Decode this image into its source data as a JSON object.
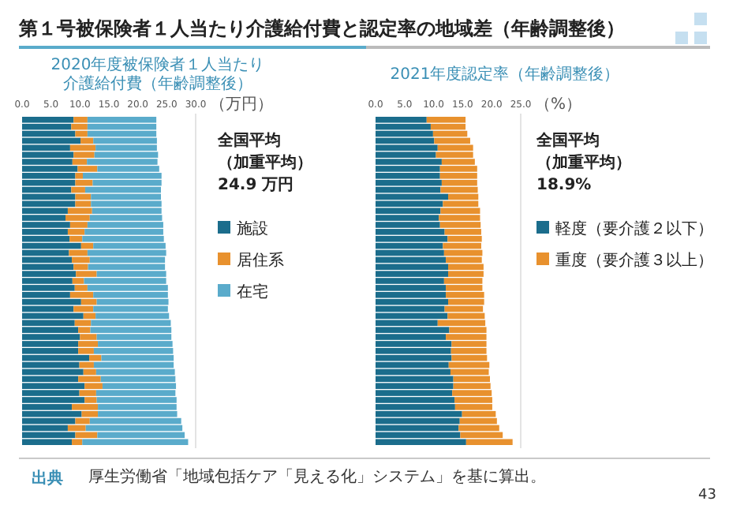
{
  "chart_data": [
    {
      "type": "other",
      "title": "第１号被保険者１人当たり介護給付費と認定率の地域差（年齢調整後）",
      "annotations": [
        "出典",
        "厚生労働省「地域包括ケア「見える化」システム」を基に算出。",
        "43"
      ]
    },
    {
      "type": "bar",
      "orientation": "horizontal",
      "stacked": true,
      "title": "2020年度被保険者１人当たり介護給付費（年齢調整後）",
      "xlabel": "（万円）",
      "legend": "right",
      "categories": [
        null,
        null,
        null,
        null,
        null,
        null,
        null,
        null,
        null,
        null,
        null,
        null,
        null,
        null,
        null,
        null,
        null,
        null,
        null,
        null,
        null,
        null,
        null,
        null,
        null,
        null,
        null,
        null,
        null,
        null,
        null,
        null,
        null,
        null,
        null,
        null,
        null,
        null,
        null,
        null,
        null,
        null,
        null,
        null,
        null,
        null,
        null
      ],
      "xlim": [
        0,
        30
      ],
      "xticks": [
        {
          "value": 0,
          "label": "0.0"
        },
        {
          "value": 5,
          "label": "5.0"
        },
        {
          "value": 10,
          "label": "10.0"
        },
        {
          "value": 15,
          "label": "15.0"
        },
        {
          "value": 20,
          "label": "20.0"
        },
        {
          "value": 25,
          "label": "25.0"
        },
        {
          "value": 30,
          "label": "30.0"
        }
      ],
      "annotations": [
        "全国平均",
        "（加重平均）",
        "24.9 万円"
      ],
      "series": [
        {
          "name": "施設",
          "color": "#1b6d8c",
          "values": [
            8.9,
            8.5,
            9.2,
            10.1,
            8.3,
            8.9,
            8.7,
            9.6,
            9.2,
            9.2,
            8.5,
            9.2,
            9.2,
            7.9,
            7.5,
            8.3,
            7.9,
            8.2,
            10.2,
            8.1,
            8.6,
            8.9,
            9.3,
            8.7,
            9.1,
            8.3,
            10.2,
            8.9,
            10.6,
            9.1,
            9.7,
            10.0,
            9.7,
            9.7,
            11.6,
            9.9,
            10.6,
            9.7,
            10.8,
            9.9,
            10.8,
            8.6,
            10.3,
            9.2,
            7.9,
            9.2,
            8.6
          ]
        },
        {
          "name": "居住系",
          "color": "#e8912e",
          "values": [
            2.4,
            2.8,
            2.1,
            2.2,
            4.4,
            3.6,
            2.5,
            3.4,
            1.3,
            3.0,
            2.4,
            2.7,
            2.7,
            4.2,
            4.2,
            3.0,
            2.9,
            2.2,
            2.1,
            3.2,
            3.1,
            2.5,
            3.6,
            2.0,
            2.2,
            4.0,
            2.7,
            3.4,
            2.1,
            2.8,
            2.1,
            2.9,
            3.4,
            2.7,
            2.1,
            2.5,
            2.2,
            3.9,
            3.1,
            2.9,
            2.1,
            4.5,
            2.8,
            2.5,
            3.1,
            3.8,
            1.8
          ]
        },
        {
          "name": "在宅",
          "color": "#5aabcb",
          "values": [
            11.9,
            11.9,
            11.9,
            11.0,
            10.6,
            11.0,
            12.2,
            10.7,
            13.6,
            11.9,
            13.1,
            12.1,
            12.2,
            12.0,
            12.5,
            13.1,
            13.6,
            14.1,
            12.5,
            13.6,
            13.0,
            13.3,
            12.0,
            14.2,
            13.9,
            12.9,
            12.4,
            12.9,
            12.7,
            13.8,
            14.0,
            12.9,
            12.9,
            13.7,
            12.5,
            13.8,
            13.6,
            12.9,
            12.7,
            13.7,
            13.8,
            13.6,
            13.7,
            15.8,
            16.7,
            15.1,
            18.3
          ]
        }
      ]
    },
    {
      "type": "bar",
      "orientation": "horizontal",
      "stacked": true,
      "title": "2021年度認定率（年齢調整後）",
      "xlabel": "（%）",
      "legend": "right",
      "categories": [
        null,
        null,
        null,
        null,
        null,
        null,
        null,
        null,
        null,
        null,
        null,
        null,
        null,
        null,
        null,
        null,
        null,
        null,
        null,
        null,
        null,
        null,
        null,
        null,
        null,
        null,
        null,
        null,
        null,
        null,
        null,
        null,
        null,
        null,
        null,
        null,
        null,
        null,
        null,
        null,
        null,
        null,
        null,
        null,
        null,
        null,
        null
      ],
      "xlim": [
        0,
        25
      ],
      "xticks": [
        {
          "value": 0,
          "label": "0.0"
        },
        {
          "value": 5,
          "label": "5.0"
        },
        {
          "value": 10,
          "label": "10.0"
        },
        {
          "value": 15,
          "label": "15.0"
        },
        {
          "value": 20,
          "label": "20.0"
        },
        {
          "value": 25,
          "label": "25.0"
        }
      ],
      "annotations": [
        "全国平均",
        "（加重平均）",
        "18.9%"
      ],
      "series": [
        {
          "name": "軽度（要介護２以下）",
          "color": "#1b6d8c",
          "values": [
            8.8,
            9.5,
            9.9,
            10.1,
            10.7,
            10.4,
            11.4,
            11.1,
            11.1,
            11.4,
            11.2,
            12.5,
            11.6,
            11.2,
            10.9,
            11.1,
            11.9,
            12.4,
            11.6,
            11.8,
            12.1,
            12.5,
            12.5,
            11.8,
            12.1,
            12.1,
            12.5,
            11.9,
            12.4,
            10.7,
            12.7,
            12.1,
            13.1,
            13.0,
            13.1,
            12.6,
            12.9,
            13.4,
            13.4,
            13.2,
            13.6,
            13.7,
            14.9,
            14.5,
            14.3,
            14.6,
            15.6
          ]
        },
        {
          "name": "重度（要介護３以上）",
          "color": "#e8912e",
          "values": [
            6.7,
            6.0,
            5.9,
            6.2,
            6.1,
            6.4,
            5.7,
            6.4,
            6.4,
            6.1,
            6.4,
            5.2,
            6.1,
            6.8,
            7.1,
            7.0,
            6.3,
            5.9,
            6.6,
            6.6,
            6.2,
            6.1,
            6.1,
            6.6,
            6.3,
            6.6,
            6.2,
            6.6,
            6.4,
            8.2,
            6.4,
            7.0,
            6.0,
            6.1,
            6.1,
            7.0,
            6.6,
            6.3,
            6.4,
            6.8,
            6.5,
            6.4,
            5.8,
            6.4,
            7.0,
            7.3,
            8.0
          ]
        }
      ]
    }
  ]
}
